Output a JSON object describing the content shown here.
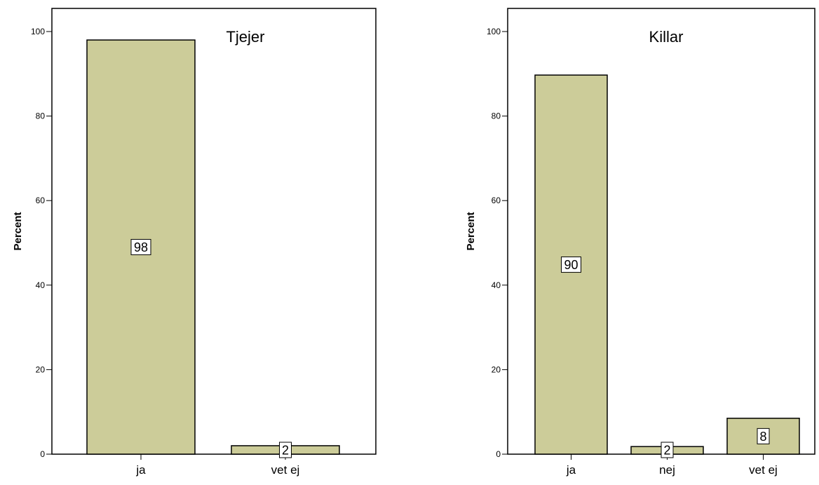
{
  "chart_data": [
    {
      "type": "bar",
      "title": "Tjejer",
      "ylabel": "Percent",
      "ylim": [
        0,
        105
      ],
      "yticks": [
        0,
        20,
        40,
        60,
        80,
        100
      ],
      "categories": [
        "ja",
        "vet ej"
      ],
      "values": [
        98,
        2
      ],
      "value_labels": [
        "98",
        "2"
      ],
      "bar_color": "#cccc99",
      "grid": false
    },
    {
      "type": "bar",
      "title": "Killar",
      "ylabel": "Percent",
      "ylim": [
        0,
        105
      ],
      "yticks": [
        0,
        20,
        40,
        60,
        80,
        100
      ],
      "categories": [
        "ja",
        "nej",
        "vet ej"
      ],
      "values": [
        89.7,
        1.8,
        8.5
      ],
      "value_labels": [
        "90",
        "2",
        "8"
      ],
      "bar_color": "#cccc99",
      "grid": false
    }
  ]
}
